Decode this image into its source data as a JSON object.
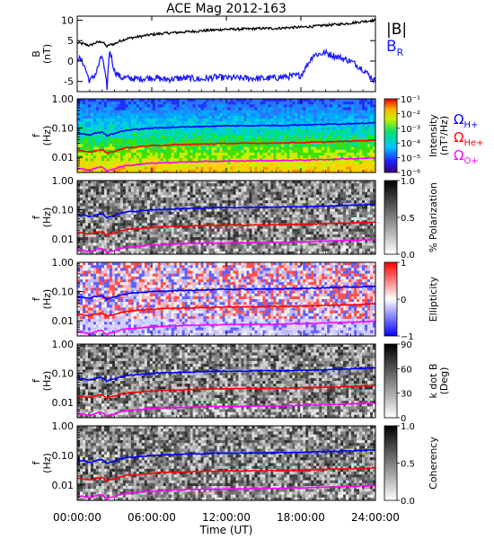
{
  "title": "ACE Mag 2012-163",
  "x_axis": {
    "label": "Time (UT)",
    "range": [
      0,
      24
    ],
    "ticks": [
      {
        "value": 0,
        "label": "00:00:00"
      },
      {
        "value": 6,
        "label": "06:00:00"
      },
      {
        "value": 12,
        "label": "12:00:00"
      },
      {
        "value": 18,
        "label": "18:00:00"
      },
      {
        "value": 24,
        "label": "24:00:00"
      }
    ]
  },
  "colors": {
    "B_total": "#000000",
    "B_R": "#1a1aff",
    "omega_H": "#0000ff",
    "omega_He": "#ff0000",
    "omega_O": "#ff00ff"
  },
  "chart_data": [
    {
      "type": "line",
      "ylabel": "B",
      "yunit": "(nT)",
      "ylim": [
        -7.5,
        11
      ],
      "yticks": [
        -5,
        0,
        5,
        10
      ],
      "x": [
        0,
        0.5,
        1,
        1.5,
        2,
        2.4,
        2.6,
        3,
        3.5,
        4,
        5,
        6,
        7,
        8,
        9,
        10,
        11,
        12,
        13,
        14,
        15,
        16,
        17,
        18,
        19,
        20,
        21,
        22,
        23,
        24
      ],
      "series": [
        {
          "name": "|B|",
          "values": [
            4.5,
            4.2,
            3.8,
            4.5,
            4.8,
            3.5,
            4.0,
            4.2,
            5.0,
            5.5,
            6.0,
            6.5,
            6.8,
            7.0,
            7.2,
            7.4,
            7.6,
            7.8,
            7.8,
            7.9,
            8.0,
            8.0,
            8.2,
            8.3,
            8.5,
            8.8,
            9.0,
            9.3,
            9.7,
            10.0
          ]
        },
        {
          "name": "B_R",
          "values": [
            1.0,
            -0.5,
            -5.0,
            -3.0,
            1.5,
            -6.5,
            3.0,
            -2.5,
            -4.0,
            -4.2,
            -4.4,
            -4.0,
            -4.5,
            -4.3,
            -4.2,
            -4.5,
            -4.0,
            -4.1,
            -4.2,
            -4.2,
            -4.3,
            -4.1,
            -3.8,
            -3.5,
            1.5,
            2.0,
            1.0,
            0.0,
            -2.0,
            -5.0
          ]
        }
      ]
    },
    {
      "type": "heatmap",
      "ylabel": "f",
      "yunit": "(Hz)",
      "ylog": true,
      "ylim": [
        0.003,
        1.0
      ],
      "ytick_labels": [
        "1.00",
        "0.10",
        "0.01"
      ],
      "colorbar": {
        "label": "Intensity",
        "unit": "(nT²/Hz)",
        "ticks": [
          "10⁻¹",
          "10⁻²",
          "10⁻³",
          "10⁻⁴",
          "10⁻⁵",
          "10⁻⁶"
        ]
      }
    },
    {
      "type": "heatmap",
      "ylabel": "f",
      "yunit": "(Hz)",
      "ylog": true,
      "ylim": [
        0.003,
        1.0
      ],
      "ytick_labels": [
        "1.00",
        "0.10",
        "0.01"
      ],
      "colorbar": {
        "label": "% Polarization",
        "unit": "",
        "ticks": [
          "1.0",
          "0.5",
          "0.0"
        ]
      }
    },
    {
      "type": "heatmap",
      "ylabel": "f",
      "yunit": "(Hz)",
      "ylog": true,
      "ylim": [
        0.003,
        1.0
      ],
      "ytick_labels": [
        "1.00",
        "0.10",
        "0.01"
      ],
      "colorbar": {
        "label": "Ellipticity",
        "unit": "",
        "ticks": [
          "1",
          "0",
          "−1"
        ]
      }
    },
    {
      "type": "heatmap",
      "ylabel": "f",
      "yunit": "(Hz)",
      "ylog": true,
      "ylim": [
        0.003,
        1.0
      ],
      "ytick_labels": [
        "1.00",
        "0.10",
        "0.01"
      ],
      "colorbar": {
        "label": "k dot B",
        "unit": "(Deg)",
        "ticks": [
          "90",
          "60",
          "30",
          "0"
        ]
      }
    },
    {
      "type": "heatmap",
      "ylabel": "f",
      "yunit": "(Hz)",
      "ylog": true,
      "ylim": [
        0.003,
        1.0
      ],
      "ytick_labels": [
        "1.00",
        "0.10",
        "0.01"
      ],
      "colorbar": {
        "label": "Coherency",
        "unit": "",
        "ticks": [
          "1.0",
          "0.5",
          "0.0"
        ]
      }
    }
  ],
  "gyrofrequency_lines": {
    "x": [
      0,
      0.5,
      1,
      1.5,
      2,
      2.4,
      2.6,
      3,
      3.5,
      4,
      5,
      6,
      7,
      8,
      9,
      10,
      11,
      12,
      13,
      14,
      15,
      16,
      17,
      18,
      19,
      20,
      21,
      22,
      23,
      24
    ],
    "series": [
      {
        "name": "Ω_H+",
        "values": [
          0.068,
          0.064,
          0.058,
          0.068,
          0.073,
          0.053,
          0.061,
          0.064,
          0.076,
          0.084,
          0.091,
          0.099,
          0.104,
          0.107,
          0.11,
          0.113,
          0.116,
          0.119,
          0.119,
          0.12,
          0.122,
          0.122,
          0.125,
          0.127,
          0.13,
          0.134,
          0.137,
          0.142,
          0.148,
          0.152
        ]
      },
      {
        "name": "Ω_He+",
        "values": [
          0.017,
          0.016,
          0.0145,
          0.017,
          0.018,
          0.0133,
          0.0152,
          0.016,
          0.019,
          0.021,
          0.0228,
          0.0247,
          0.026,
          0.0267,
          0.0274,
          0.0282,
          0.029,
          0.0297,
          0.0297,
          0.03,
          0.0305,
          0.0305,
          0.0312,
          0.0316,
          0.0324,
          0.0335,
          0.0343,
          0.0354,
          0.0369,
          0.038
        ]
      },
      {
        "name": "Ω_O+",
        "values": [
          0.0043,
          0.004,
          0.0036,
          0.0043,
          0.0046,
          0.0033,
          0.0038,
          0.004,
          0.0048,
          0.0052,
          0.0057,
          0.0062,
          0.0065,
          0.0067,
          0.0069,
          0.0071,
          0.0072,
          0.0074,
          0.0074,
          0.0075,
          0.0076,
          0.0076,
          0.0078,
          0.0079,
          0.0081,
          0.0084,
          0.0086,
          0.0089,
          0.0092,
          0.0095
        ]
      }
    ]
  },
  "legend_top": {
    "btot": "|B|",
    "br_main": "B",
    "br_sub": "R"
  },
  "legend_gyro": [
    {
      "main": "Ω",
      "sub": "H+"
    },
    {
      "main": "Ω",
      "sub": "He+"
    },
    {
      "main": "Ω",
      "sub": "O+"
    }
  ]
}
